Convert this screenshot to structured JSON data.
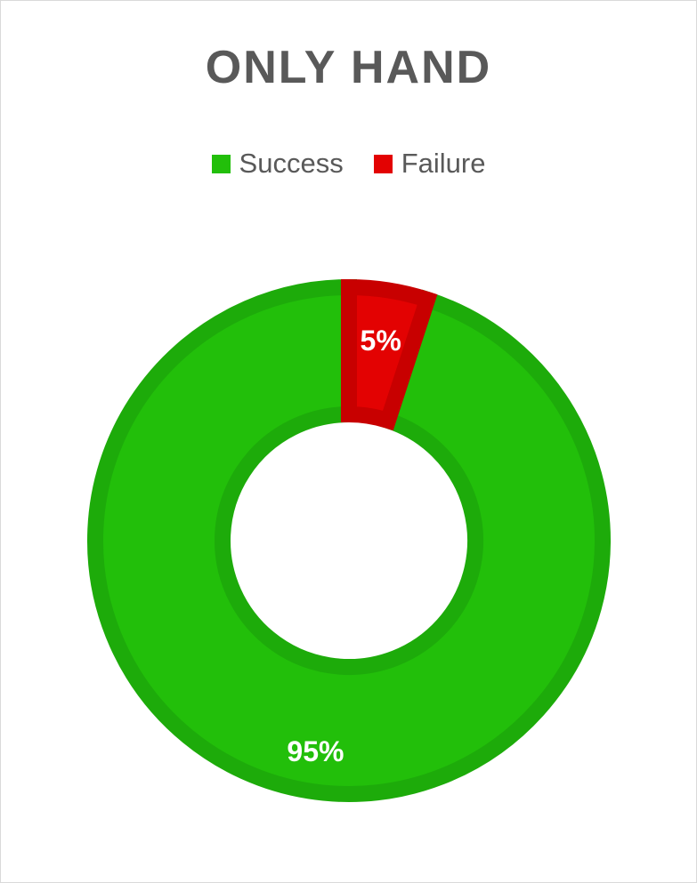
{
  "chart_data": {
    "type": "pie",
    "title": "ONLY HAND",
    "legend_position": "top",
    "categories": [
      "Success",
      "Failure"
    ],
    "values": [
      95,
      5
    ],
    "data_labels": [
      "95%",
      "5%"
    ],
    "colors": [
      "#22bf0a",
      "#e30202"
    ],
    "border_colors": [
      "#1dab0a",
      "#c80000"
    ],
    "start_angle_deg": 0,
    "direction": "counterclockwise"
  }
}
